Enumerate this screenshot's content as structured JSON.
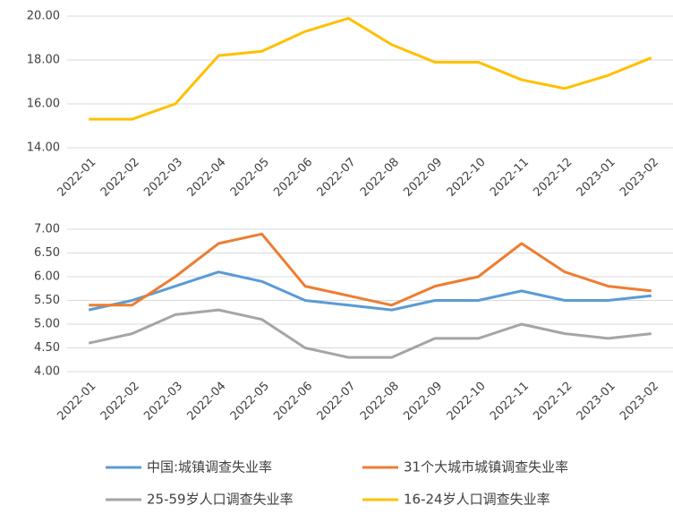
{
  "chart_data": [
    {
      "type": "line",
      "categories": [
        "2022-01",
        "2022-02",
        "2022-03",
        "2022-04",
        "2022-05",
        "2022-06",
        "2022-07",
        "2022-08",
        "2022-09",
        "2022-10",
        "2022-11",
        "2022-12",
        "2023-01",
        "2023-02"
      ],
      "series": [
        {
          "name": "16-24岁人口调查失业率",
          "color": "#ffc000",
          "values": [
            15.3,
            15.3,
            16.0,
            18.2,
            18.4,
            19.3,
            19.9,
            18.7,
            17.9,
            17.9,
            17.1,
            16.7,
            17.3,
            18.1
          ]
        }
      ],
      "ylim": [
        14,
        20
      ],
      "yticks": [
        {
          "value": 14,
          "label": "14.00"
        },
        {
          "value": 16,
          "label": "16.00"
        },
        {
          "value": 18,
          "label": "18.00"
        },
        {
          "value": 20,
          "label": "20.00"
        }
      ],
      "grid": true
    },
    {
      "type": "line",
      "categories": [
        "2022-01",
        "2022-02",
        "2022-03",
        "2022-04",
        "2022-05",
        "2022-06",
        "2022-07",
        "2022-08",
        "2022-09",
        "2022-10",
        "2022-11",
        "2022-12",
        "2023-01",
        "2023-02"
      ],
      "series": [
        {
          "name": "中国:城镇调查失业率",
          "color": "#5b9bd5",
          "values": [
            5.3,
            5.5,
            5.8,
            6.1,
            5.9,
            5.5,
            5.4,
            5.3,
            5.5,
            5.5,
            5.7,
            5.5,
            5.5,
            5.6
          ]
        },
        {
          "name": "31个大城市城镇调查失业率",
          "color": "#ed7d31",
          "values": [
            5.4,
            5.4,
            6.0,
            6.7,
            6.9,
            5.8,
            5.6,
            5.4,
            5.8,
            6.0,
            6.7,
            6.1,
            5.8,
            5.7
          ]
        },
        {
          "name": "25-59岁人口调查失业率",
          "color": "#a5a5a5",
          "values": [
            4.6,
            4.8,
            5.2,
            5.3,
            5.1,
            4.5,
            4.3,
            4.3,
            4.7,
            4.7,
            5.0,
            4.8,
            4.7,
            4.8
          ]
        }
      ],
      "ylim": [
        4,
        7
      ],
      "yticks": [
        {
          "value": 4,
          "label": "4.00"
        },
        {
          "value": 4.5,
          "label": "4.50"
        },
        {
          "value": 5,
          "label": "5.00"
        },
        {
          "value": 5.5,
          "label": "5.50"
        },
        {
          "value": 6,
          "label": "6.00"
        },
        {
          "value": 6.5,
          "label": "6.50"
        },
        {
          "value": 7,
          "label": "7.00"
        }
      ],
      "grid": true
    }
  ]
}
